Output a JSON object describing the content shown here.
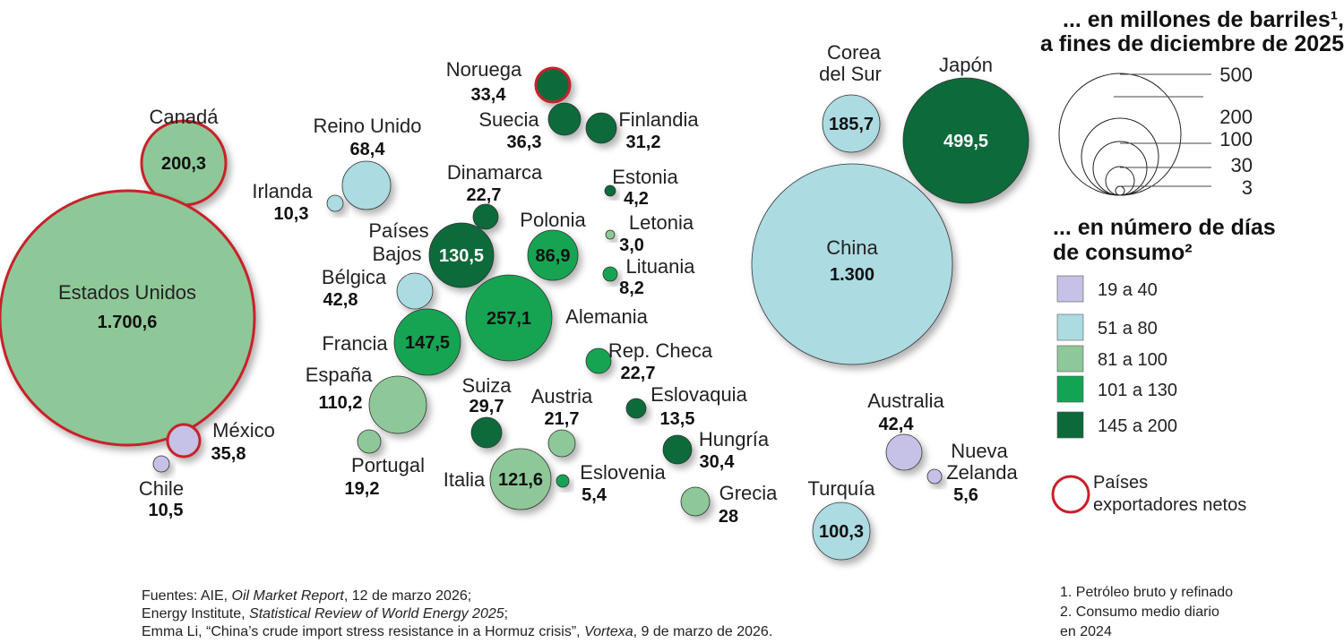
{
  "colors": {
    "19 a 40": "#c6c1e6",
    "51 a 80": "#acdbe2",
    "81 a 100": "#8ec898",
    "101 a 130": "#12a453",
    "145 a 200": "#0c6a3a",
    "exporter_ring": "#c8202a"
  },
  "chart_data": {
    "type": "bubble",
    "title_lines": [
      "... en millones de barriles¹,",
      "a fines de diciembre de 2025"
    ],
    "size_legend": {
      "values": [
        500,
        200,
        100,
        30,
        3
      ],
      "labels": [
        "500",
        "200",
        "100",
        "30",
        "3"
      ]
    },
    "color_legend": {
      "title_lines": [
        "... en número de días",
        "de consumo²"
      ],
      "items": [
        "19 a 40",
        "51 a 80",
        "81 a 100",
        "101 a 130",
        "145 a 200"
      ],
      "exporter_label_lines": [
        "Países",
        "exportadores netos"
      ]
    },
    "bubbles": [
      {
        "name": "Canadá",
        "label": "200,3",
        "value": 200.3,
        "days": "81 a 100",
        "exporter": true
      },
      {
        "name": "Estados Unidos",
        "label": "1.700,6",
        "value": 1700.6,
        "days": "81 a 100",
        "exporter": true
      },
      {
        "name": "México",
        "label": "35,8",
        "value": 35.8,
        "days": "19 a 40",
        "exporter": true
      },
      {
        "name": "Chile",
        "label": "10,5",
        "value": 10.5,
        "days": "19 a 40",
        "exporter": false
      },
      {
        "name": "Irlanda",
        "label": "10,3",
        "value": 10.3,
        "days": "51 a 80",
        "exporter": false
      },
      {
        "name": "Reino Unido",
        "label": "68,4",
        "value": 68.4,
        "days": "51 a 80",
        "exporter": false
      },
      {
        "name": "Noruega",
        "label": "33,4",
        "value": 33.4,
        "days": "145 a 200",
        "exporter": true
      },
      {
        "name": "Suecia",
        "label": "36,3",
        "value": 36.3,
        "days": "145 a 200",
        "exporter": false
      },
      {
        "name": "Finlandia",
        "label": "31,2",
        "value": 31.2,
        "days": "145 a 200",
        "exporter": false
      },
      {
        "name": "Dinamarca",
        "label": "22,7",
        "value": 22.7,
        "days": "145 a 200",
        "exporter": false
      },
      {
        "name": "Estonia",
        "label": "4,2",
        "value": 4.2,
        "days": "145 a 200",
        "exporter": false
      },
      {
        "name": "Letonia",
        "label": "3,0",
        "value": 3.0,
        "days": "81 a 100",
        "exporter": false
      },
      {
        "name": "Lituania",
        "label": "8,2",
        "value": 8.2,
        "days": "101 a 130",
        "exporter": false
      },
      {
        "name": "Países Bajos",
        "label": "130,5",
        "value": 130.5,
        "days": "145 a 200",
        "exporter": false
      },
      {
        "name": "Polonia",
        "label": "86,9",
        "value": 86.9,
        "days": "101 a 130",
        "exporter": false
      },
      {
        "name": "Bélgica",
        "label": "42,8",
        "value": 42.8,
        "days": "51 a 80",
        "exporter": false
      },
      {
        "name": "Alemania",
        "label": "257,1",
        "value": 257.1,
        "days": "101 a 130",
        "exporter": false
      },
      {
        "name": "Francia",
        "label": "147,5",
        "value": 147.5,
        "days": "101 a 130",
        "exporter": false
      },
      {
        "name": "Rep. Checa",
        "label": "22,7",
        "value": 22.7,
        "days": "101 a 130",
        "exporter": false
      },
      {
        "name": "España",
        "label": "110,2",
        "value": 110.2,
        "days": "81 a 100",
        "exporter": false
      },
      {
        "name": "Suiza",
        "label": "29,7",
        "value": 29.7,
        "days": "145 a 200",
        "exporter": false
      },
      {
        "name": "Austria",
        "label": "21,7",
        "value": 21.7,
        "days": "81 a 100",
        "exporter": false
      },
      {
        "name": "Eslovaquia",
        "label": "13,5",
        "value": 13.5,
        "days": "145 a 200",
        "exporter": false
      },
      {
        "name": "Hungría",
        "label": "30,4",
        "value": 30.4,
        "days": "145 a 200",
        "exporter": false
      },
      {
        "name": "Portugal",
        "label": "19,2",
        "value": 19.2,
        "days": "81 a 100",
        "exporter": false
      },
      {
        "name": "Italia",
        "label": "121,6",
        "value": 121.6,
        "days": "81 a 100",
        "exporter": false
      },
      {
        "name": "Eslovenia",
        "label": "5,4",
        "value": 5.4,
        "days": "101 a 130",
        "exporter": false
      },
      {
        "name": "Grecia",
        "label": "28",
        "value": 28,
        "days": "81 a 100",
        "exporter": false
      },
      {
        "name": "Corea del Sur",
        "label": "185,7",
        "value": 185.7,
        "days": "51 a 80",
        "exporter": false
      },
      {
        "name": "Japón",
        "label": "499,5",
        "value": 499.5,
        "days": "145 a 200",
        "exporter": false
      },
      {
        "name": "China",
        "label": "1.300",
        "value": 1300,
        "days": "51 a 80",
        "exporter": false
      },
      {
        "name": "Australia",
        "label": "42,4",
        "value": 42.4,
        "days": "19 a 40",
        "exporter": false
      },
      {
        "name": "Nueva Zelanda",
        "label": "5,6",
        "value": 5.6,
        "days": "19 a 40",
        "exporter": false
      },
      {
        "name": "Turquía",
        "label": "100,3",
        "value": 100.3,
        "days": "51 a 80",
        "exporter": false
      }
    ]
  },
  "sources": [
    [
      "Fuentes: AIE, ",
      "Oil Market Report",
      ", 12 de marzo 2026;"
    ],
    [
      "Energy Institute, ",
      "Statistical Review of World Energy 2025",
      ";"
    ],
    [
      "Emma Li, “China’s crude import stress resistance in a Hormuz crisis”, ",
      "Vortexa",
      ", 9 de marzo de 2026."
    ]
  ],
  "footnotes": [
    "1. Petróleo bruto y refinado",
    "2. Consumo medio diario",
    "en 2024"
  ]
}
